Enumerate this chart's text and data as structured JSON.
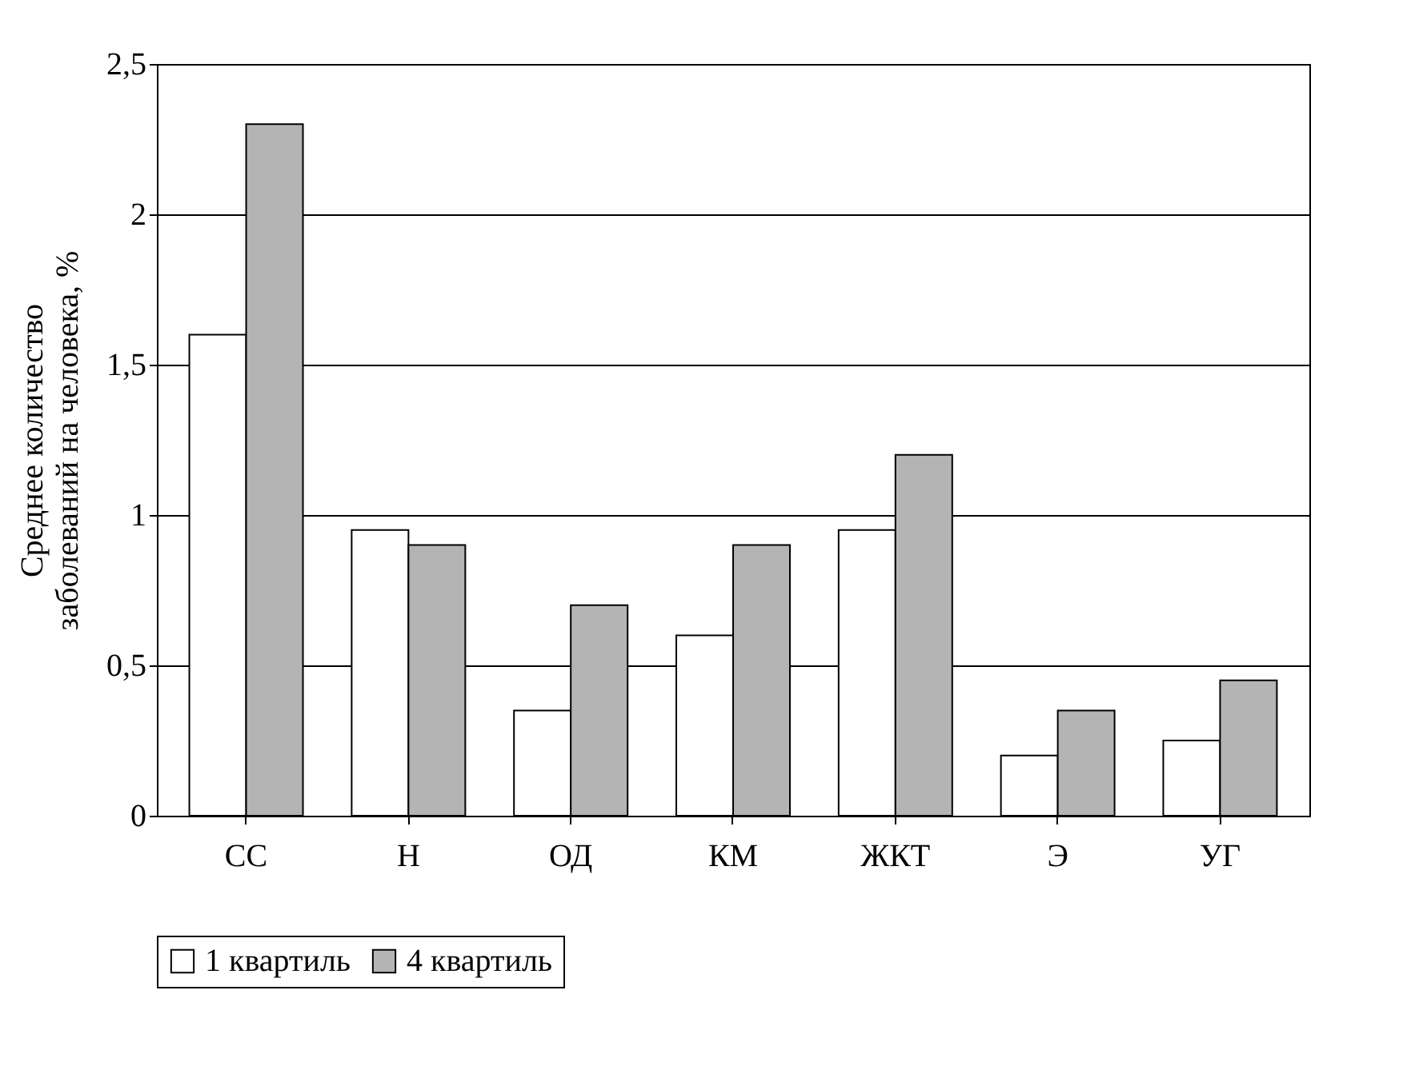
{
  "chart_data": {
    "type": "bar",
    "ylabel": "Среднее количество\nзаболеваний на человека, %",
    "categories": [
      "СС",
      "Н",
      "ОД",
      "КМ",
      "ЖКТ",
      "Э",
      "УГ"
    ],
    "series": [
      {
        "name": "1 квартиль",
        "color": "#ffffff",
        "values": [
          1.6,
          0.95,
          0.35,
          0.6,
          0.95,
          0.2,
          0.25
        ]
      },
      {
        "name": "4 квартиль",
        "color": "#b4b4b4",
        "values": [
          2.3,
          0.9,
          0.7,
          0.9,
          1.2,
          0.35,
          0.45
        ]
      }
    ],
    "ylim": [
      0,
      2.5
    ],
    "yticks": [
      0,
      {
        "value": 0.5,
        "label": "0,5"
      },
      1,
      {
        "value": 1.5,
        "label": "1,5"
      },
      2,
      {
        "value": 2.5,
        "label": "2,5"
      }
    ],
    "grid": "y",
    "legend": "bottom"
  }
}
